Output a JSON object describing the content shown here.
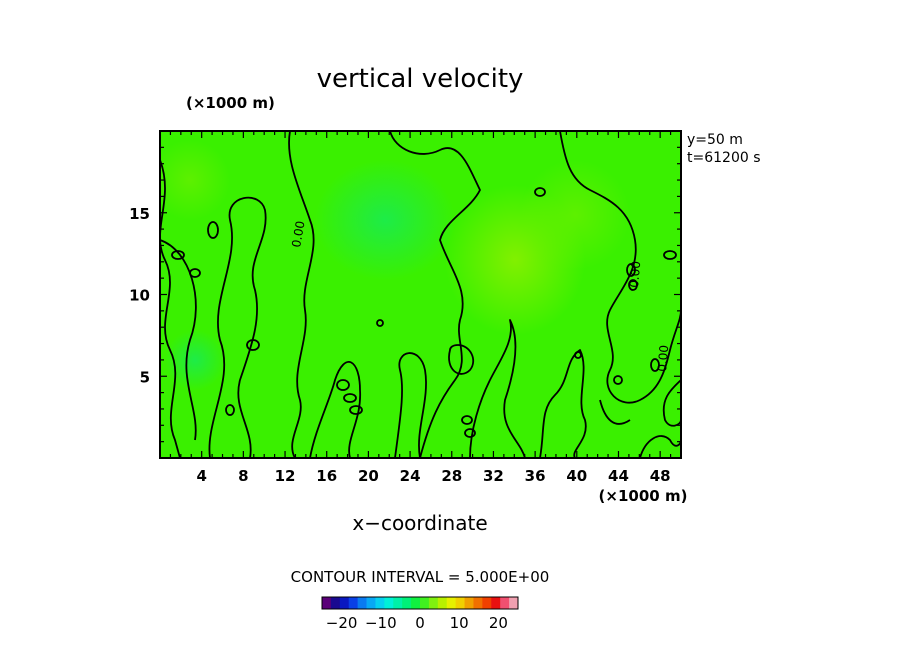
{
  "chart_data": {
    "type": "heatmap",
    "title": "vertical velocity",
    "xlabel": "x−coordinate",
    "x_unit": "(×1000 m)",
    "y_unit": "(×1000 m)",
    "x_ticks": [
      "4",
      "8",
      "12",
      "16",
      "20",
      "24",
      "28",
      "32",
      "36",
      "40",
      "44",
      "48"
    ],
    "x_tick_values": [
      4,
      8,
      12,
      16,
      20,
      24,
      28,
      32,
      36,
      40,
      44,
      48
    ],
    "y_ticks": [
      "5",
      "10",
      "15"
    ],
    "y_tick_values": [
      5,
      10,
      15
    ],
    "xlim": [
      0,
      50
    ],
    "ylim": [
      0,
      20
    ],
    "annotations": [
      "y=50 m",
      "t=61200 s"
    ],
    "contour_label": "0.00",
    "contour_interval": "CONTOUR INTERVAL = 5.000E+00",
    "colorbar": {
      "range": [
        -25,
        25
      ],
      "tick_labels": [
        "−20",
        "−10",
        "0",
        "10",
        "20"
      ],
      "tick_values": [
        -20,
        -10,
        0,
        10,
        20
      ],
      "colors": [
        "#5a0078",
        "#1a0a90",
        "#0a18c0",
        "#0a40e6",
        "#0a7af0",
        "#08a8f5",
        "#06d0f0",
        "#00f0d8",
        "#00f0a8",
        "#00f078",
        "#10f040",
        "#40f020",
        "#80f010",
        "#b8f000",
        "#e6f000",
        "#f0d000",
        "#f0a000",
        "#f07000",
        "#f04000",
        "#e81010",
        "#f05070",
        "#f0a0b0"
      ]
    },
    "field_colors": [
      "#22ee00",
      "#3af000",
      "#60f000",
      "#18ec48",
      "#26f22a"
    ],
    "field_summary": "near-uniform green (values close to 0) with weak yellow-green highs around x≈34, y≈12 and x≈40, y≈15; faint cyan-green lows near x≈22, y≈14"
  }
}
